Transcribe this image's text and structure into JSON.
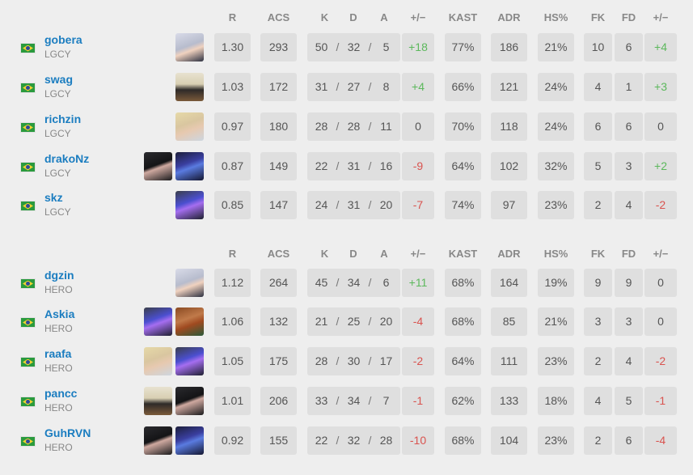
{
  "headers": {
    "r": "R",
    "acs": "ACS",
    "k": "K",
    "d": "D",
    "a": "A",
    "pm": "+/−",
    "kast": "KAST",
    "adr": "ADR",
    "hs": "HS%",
    "fk": "FK",
    "fd": "FD",
    "fpm": "+/−"
  },
  "kda_sep": "/",
  "colors": {
    "name": "#1b7dc0",
    "positive": "#5cb85c",
    "negative": "#d9534f",
    "cell": "#dfdfdf"
  },
  "teams": [
    {
      "players": [
        {
          "name": "gobera",
          "team": "LGCY",
          "flag": "brazil-flag",
          "agents": [
            "agent-jett-icon"
          ],
          "r": "1.30",
          "acs": "293",
          "k": "50",
          "d": "32",
          "a": "5",
          "pm": "+18",
          "kast": "77%",
          "adr": "186",
          "hs": "21%",
          "fk": "10",
          "fd": "6",
          "fpm": "+4"
        },
        {
          "name": "swag",
          "team": "LGCY",
          "flag": "brazil-flag",
          "agents": [
            "agent-cypher-icon"
          ],
          "r": "1.03",
          "acs": "172",
          "k": "31",
          "d": "27",
          "a": "8",
          "pm": "+4",
          "kast": "66%",
          "adr": "121",
          "hs": "24%",
          "fk": "4",
          "fd": "1",
          "fpm": "+3"
        },
        {
          "name": "richzin",
          "team": "LGCY",
          "flag": "brazil-flag",
          "agents": [
            "agent-sova-icon"
          ],
          "r": "0.97",
          "acs": "180",
          "k": "28",
          "d": "28",
          "a": "11",
          "pm": "0",
          "kast": "70%",
          "adr": "118",
          "hs": "24%",
          "fk": "6",
          "fd": "6",
          "fpm": "0"
        },
        {
          "name": "drakoNz",
          "team": "LGCY",
          "flag": "brazil-flag",
          "agents": [
            "agent-viper-icon",
            "agent-omen-icon"
          ],
          "r": "0.87",
          "acs": "149",
          "k": "22",
          "d": "31",
          "a": "16",
          "pm": "-9",
          "kast": "64%",
          "adr": "102",
          "hs": "32%",
          "fk": "5",
          "fd": "3",
          "fpm": "+2"
        },
        {
          "name": "skz",
          "team": "LGCY",
          "flag": "brazil-flag",
          "agents": [
            "agent-kayo-icon"
          ],
          "r": "0.85",
          "acs": "147",
          "k": "24",
          "d": "31",
          "a": "20",
          "pm": "-7",
          "kast": "74%",
          "adr": "97",
          "hs": "23%",
          "fk": "2",
          "fd": "4",
          "fpm": "-2"
        }
      ]
    },
    {
      "players": [
        {
          "name": "dgzin",
          "team": "HERO",
          "flag": "brazil-flag",
          "agents": [
            "agent-jett-icon"
          ],
          "r": "1.12",
          "acs": "264",
          "k": "45",
          "d": "34",
          "a": "6",
          "pm": "+11",
          "kast": "68%",
          "adr": "164",
          "hs": "19%",
          "fk": "9",
          "fd": "9",
          "fpm": "0"
        },
        {
          "name": "Askia",
          "team": "HERO",
          "flag": "brazil-flag",
          "agents": [
            "agent-kayo-icon",
            "agent-breach-icon"
          ],
          "r": "1.06",
          "acs": "132",
          "k": "21",
          "d": "25",
          "a": "20",
          "pm": "-4",
          "kast": "68%",
          "adr": "85",
          "hs": "21%",
          "fk": "3",
          "fd": "3",
          "fpm": "0"
        },
        {
          "name": "raafa",
          "team": "HERO",
          "flag": "brazil-flag",
          "agents": [
            "agent-sova-icon",
            "agent-kayo-icon"
          ],
          "r": "1.05",
          "acs": "175",
          "k": "28",
          "d": "30",
          "a": "17",
          "pm": "-2",
          "kast": "64%",
          "adr": "111",
          "hs": "23%",
          "fk": "2",
          "fd": "4",
          "fpm": "-2"
        },
        {
          "name": "pancc",
          "team": "HERO",
          "flag": "brazil-flag",
          "agents": [
            "agent-cypher-icon",
            "agent-viper-icon"
          ],
          "r": "1.01",
          "acs": "206",
          "k": "33",
          "d": "34",
          "a": "7",
          "pm": "-1",
          "kast": "62%",
          "adr": "133",
          "hs": "18%",
          "fk": "4",
          "fd": "5",
          "fpm": "-1"
        },
        {
          "name": "GuhRVN",
          "team": "HERO",
          "flag": "brazil-flag",
          "agents": [
            "agent-viper-icon",
            "agent-omen-icon"
          ],
          "r": "0.92",
          "acs": "155",
          "k": "22",
          "d": "32",
          "a": "28",
          "pm": "-10",
          "kast": "68%",
          "adr": "104",
          "hs": "23%",
          "fk": "2",
          "fd": "6",
          "fpm": "-4"
        }
      ]
    }
  ]
}
